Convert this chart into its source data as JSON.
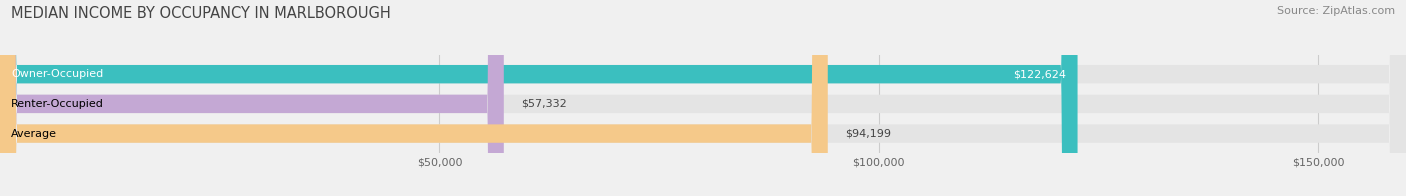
{
  "title": "MEDIAN INCOME BY OCCUPANCY IN MARLBOROUGH",
  "source": "Source: ZipAtlas.com",
  "categories": [
    "Owner-Occupied",
    "Renter-Occupied",
    "Average"
  ],
  "values": [
    122624,
    57332,
    94199
  ],
  "bar_colors": [
    "#3bbfbf",
    "#c4a8d4",
    "#f5c98a"
  ],
  "value_labels": [
    "$122,624",
    "$57,332",
    "$94,199"
  ],
  "label_colors": [
    "white",
    "black",
    "black"
  ],
  "value_label_colors": [
    "white",
    "black",
    "black"
  ],
  "xlim": [
    0,
    160000
  ],
  "xticks": [
    50000,
    100000,
    150000
  ],
  "xtick_labels": [
    "$50,000",
    "$100,000",
    "$150,000"
  ],
  "background_color": "#f0f0f0",
  "bar_bg_color": "#e4e4e4",
  "title_fontsize": 10.5,
  "source_fontsize": 8,
  "label_fontsize": 8,
  "value_fontsize": 8,
  "tick_fontsize": 8,
  "bar_height": 0.62,
  "fig_width": 14.06,
  "fig_height": 1.96,
  "dpi": 100
}
